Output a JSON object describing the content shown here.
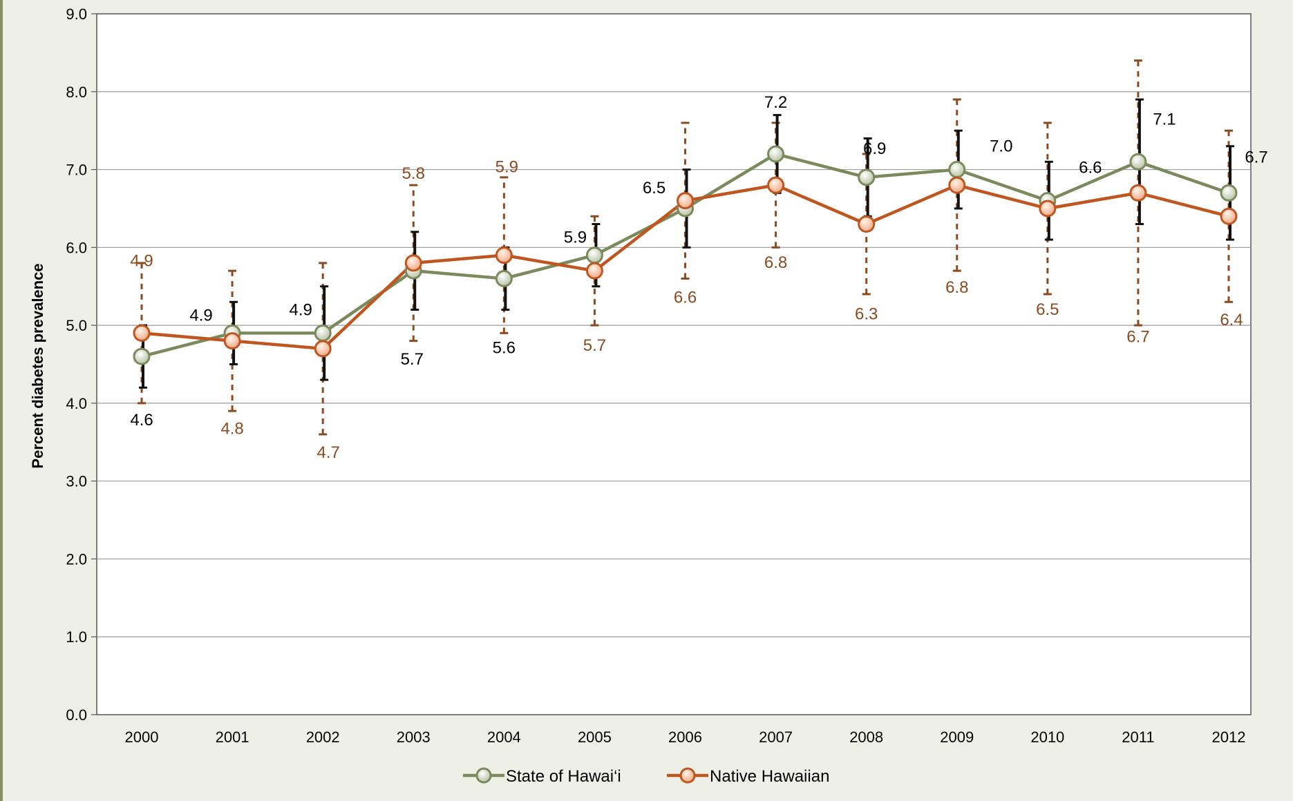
{
  "chart_data": {
    "type": "line",
    "title": "",
    "xlabel": "",
    "ylabel": "Percent diabetes prevalence",
    "ylim": [
      0,
      9
    ],
    "yticks": [
      "0.0",
      "1.0",
      "2.0",
      "3.0",
      "4.0",
      "5.0",
      "6.0",
      "7.0",
      "8.0",
      "9.0"
    ],
    "categories": [
      "2000",
      "2001",
      "2002",
      "2003",
      "2004",
      "2005",
      "2006",
      "2007",
      "2008",
      "2009",
      "2010",
      "2011",
      "2012"
    ],
    "grid": "horizontal",
    "legend_position": "bottom",
    "series": [
      {
        "name": "State of Hawai‘i",
        "color": "#7b8a5c",
        "values": [
          4.6,
          4.9,
          4.9,
          5.7,
          5.6,
          5.9,
          6.5,
          7.2,
          6.9,
          7.0,
          6.6,
          7.1,
          6.7
        ],
        "ci_low": [
          4.2,
          4.5,
          4.3,
          5.2,
          5.2,
          5.5,
          6.0,
          6.7,
          6.4,
          6.5,
          6.1,
          6.3,
          6.1
        ],
        "ci_high": [
          5.0,
          5.3,
          5.5,
          6.2,
          6.0,
          6.3,
          7.0,
          7.7,
          7.4,
          7.5,
          7.1,
          7.9,
          7.3
        ],
        "error_bar_style": "solid"
      },
      {
        "name": "Native Hawaiian",
        "color": "#c0561f",
        "values": [
          4.9,
          4.8,
          4.7,
          5.8,
          5.9,
          5.7,
          6.6,
          6.8,
          6.3,
          6.8,
          6.5,
          6.7,
          6.4
        ],
        "ci_low": [
          4.0,
          3.9,
          3.6,
          4.8,
          4.9,
          5.0,
          5.6,
          6.0,
          5.4,
          5.7,
          5.4,
          5.0,
          5.3
        ],
        "ci_high": [
          5.8,
          5.7,
          5.8,
          6.8,
          6.9,
          6.4,
          7.6,
          7.6,
          7.2,
          7.9,
          7.6,
          8.4,
          7.5
        ],
        "error_bar_style": "dashed"
      }
    ]
  },
  "colors": {
    "background": "#eef0e8",
    "plot_background": "#ffffff",
    "label_hawaii": "#000000",
    "label_native": "#8b4a1f"
  }
}
